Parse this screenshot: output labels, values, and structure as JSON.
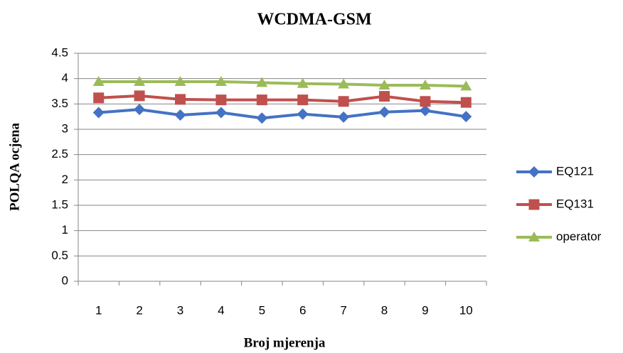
{
  "chart_data": {
    "type": "line",
    "title": "WCDMA-GSM",
    "x_label": "Broj mjerenja",
    "y_label": "POLQA ocjena",
    "categories": [
      "1",
      "2",
      "3",
      "4",
      "5",
      "6",
      "7",
      "8",
      "9",
      "10"
    ],
    "series": [
      {
        "name": "EQ121",
        "color": "#4472c4",
        "marker": "diamond",
        "values": [
          3.33,
          3.39,
          3.28,
          3.33,
          3.22,
          3.3,
          3.24,
          3.34,
          3.37,
          3.25
        ]
      },
      {
        "name": "EQ131",
        "color": "#c0504d",
        "marker": "square",
        "values": [
          3.62,
          3.66,
          3.59,
          3.58,
          3.58,
          3.58,
          3.55,
          3.65,
          3.55,
          3.53
        ]
      },
      {
        "name": "operator",
        "color": "#9bbb59",
        "marker": "triangle",
        "values": [
          3.94,
          3.94,
          3.94,
          3.94,
          3.92,
          3.9,
          3.89,
          3.87,
          3.87,
          3.85
        ]
      }
    ],
    "ylim": [
      0,
      4.5
    ],
    "yticks": [
      0,
      0.5,
      1,
      1.5,
      2,
      2.5,
      3,
      3.5,
      4,
      4.5
    ],
    "grid": true,
    "legend": "right"
  }
}
